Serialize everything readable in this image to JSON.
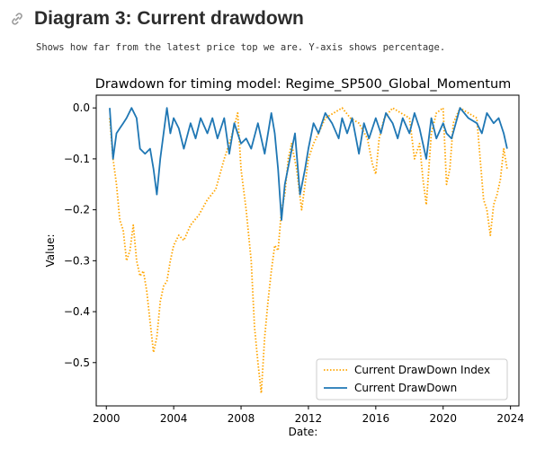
{
  "page": {
    "heading": "Diagram 3: Current drawdown",
    "description": "Shows how far from the latest price top we are. Y-axis shows percentage.",
    "link_icon": "link-icon"
  },
  "colors": {
    "index": "#ffa500",
    "drawdown": "#1f77b4"
  },
  "chart_data": {
    "type": "line",
    "title": "Drawdown for timing model: Regime_SP500_Global_Momentum",
    "xlabel": "Date:",
    "ylabel": "Value:",
    "xlim": [
      1999.4,
      2024.5
    ],
    "ylim": [
      -0.585,
      0.025
    ],
    "xticks": [
      2000,
      2004,
      2008,
      2012,
      2016,
      2020,
      2024
    ],
    "xtick_labels": [
      "2000",
      "2004",
      "2008",
      "2012",
      "2016",
      "2020",
      "2024"
    ],
    "yticks": [
      0.0,
      -0.1,
      -0.2,
      -0.3,
      -0.4,
      -0.5
    ],
    "ytick_labels": [
      "0.0",
      "−0.1",
      "−0.2",
      "−0.3",
      "−0.4",
      "−0.5"
    ],
    "legend_position": "bottom-right",
    "series": [
      {
        "name": "Current DrawDown Index",
        "style": "dotted",
        "x": [
          2000.2,
          2000.4,
          2000.6,
          2000.8,
          2001.0,
          2001.2,
          2001.4,
          2001.6,
          2001.8,
          2002.0,
          2002.2,
          2002.4,
          2002.6,
          2002.8,
          2003.0,
          2003.2,
          2003.4,
          2003.6,
          2003.8,
          2004.0,
          2004.3,
          2004.6,
          2005.0,
          2005.5,
          2006.0,
          2006.5,
          2007.0,
          2007.4,
          2007.8,
          2008.0,
          2008.3,
          2008.6,
          2008.8,
          2009.0,
          2009.2,
          2009.4,
          2009.6,
          2009.8,
          2010.0,
          2010.2,
          2010.4,
          2010.6,
          2010.8,
          2011.0,
          2011.3,
          2011.6,
          2011.8,
          2012.0,
          2012.3,
          2012.6,
          2013.0,
          2013.5,
          2014.0,
          2014.5,
          2015.0,
          2015.5,
          2015.8,
          2016.0,
          2016.2,
          2016.5,
          2017.0,
          2017.5,
          2018.0,
          2018.3,
          2018.6,
          2018.8,
          2019.0,
          2019.3,
          2019.6,
          2020.0,
          2020.2,
          2020.4,
          2020.6,
          2021.0,
          2021.5,
          2022.0,
          2022.2,
          2022.4,
          2022.6,
          2022.8,
          2023.0,
          2023.2,
          2023.4,
          2023.6,
          2023.8
        ],
        "y": [
          -0.02,
          -0.1,
          -0.15,
          -0.22,
          -0.24,
          -0.3,
          -0.28,
          -0.23,
          -0.3,
          -0.33,
          -0.32,
          -0.36,
          -0.42,
          -0.48,
          -0.45,
          -0.38,
          -0.35,
          -0.34,
          -0.3,
          -0.27,
          -0.25,
          -0.26,
          -0.23,
          -0.21,
          -0.18,
          -0.16,
          -0.1,
          -0.06,
          -0.01,
          -0.12,
          -0.2,
          -0.3,
          -0.43,
          -0.5,
          -0.56,
          -0.45,
          -0.38,
          -0.32,
          -0.27,
          -0.28,
          -0.2,
          -0.17,
          -0.1,
          -0.07,
          -0.12,
          -0.2,
          -0.15,
          -0.1,
          -0.07,
          -0.05,
          -0.02,
          -0.01,
          0.0,
          -0.02,
          -0.03,
          -0.06,
          -0.11,
          -0.13,
          -0.06,
          -0.02,
          0.0,
          -0.01,
          -0.02,
          -0.1,
          -0.07,
          -0.14,
          -0.19,
          -0.05,
          -0.01,
          0.0,
          -0.15,
          -0.12,
          -0.03,
          0.0,
          -0.01,
          -0.02,
          -0.1,
          -0.18,
          -0.2,
          -0.25,
          -0.19,
          -0.17,
          -0.14,
          -0.08,
          -0.12
        ]
      },
      {
        "name": "Current DrawDown",
        "style": "solid",
        "x": [
          2000.2,
          2000.4,
          2000.6,
          2000.8,
          2001.0,
          2001.2,
          2001.5,
          2001.8,
          2002.0,
          2002.3,
          2002.6,
          2002.8,
          2003.0,
          2003.2,
          2003.4,
          2003.6,
          2003.8,
          2004.0,
          2004.3,
          2004.6,
          2005.0,
          2005.3,
          2005.6,
          2006.0,
          2006.3,
          2006.6,
          2007.0,
          2007.3,
          2007.6,
          2008.0,
          2008.3,
          2008.6,
          2009.0,
          2009.4,
          2009.8,
          2010.0,
          2010.2,
          2010.4,
          2010.6,
          2010.9,
          2011.2,
          2011.5,
          2011.8,
          2012.0,
          2012.3,
          2012.6,
          2013.0,
          2013.4,
          2013.8,
          2014.0,
          2014.3,
          2014.6,
          2015.0,
          2015.3,
          2015.6,
          2016.0,
          2016.3,
          2016.6,
          2017.0,
          2017.3,
          2017.6,
          2018.0,
          2018.3,
          2018.6,
          2019.0,
          2019.3,
          2019.6,
          2020.0,
          2020.2,
          2020.5,
          2021.0,
          2021.5,
          2022.0,
          2022.3,
          2022.6,
          2023.0,
          2023.3,
          2023.6,
          2023.8
        ],
        "y": [
          0.0,
          -0.1,
          -0.05,
          -0.04,
          -0.03,
          -0.02,
          0.0,
          -0.02,
          -0.08,
          -0.09,
          -0.08,
          -0.12,
          -0.17,
          -0.1,
          -0.05,
          0.0,
          -0.05,
          -0.02,
          -0.04,
          -0.08,
          -0.03,
          -0.06,
          -0.02,
          -0.05,
          -0.02,
          -0.06,
          -0.02,
          -0.09,
          -0.03,
          -0.07,
          -0.06,
          -0.08,
          -0.03,
          -0.09,
          -0.01,
          -0.05,
          -0.12,
          -0.22,
          -0.15,
          -0.1,
          -0.05,
          -0.17,
          -0.12,
          -0.08,
          -0.03,
          -0.05,
          -0.01,
          -0.03,
          -0.06,
          -0.02,
          -0.05,
          -0.02,
          -0.09,
          -0.03,
          -0.06,
          -0.02,
          -0.05,
          -0.01,
          -0.03,
          -0.06,
          -0.02,
          -0.05,
          -0.01,
          -0.04,
          -0.1,
          -0.02,
          -0.06,
          -0.03,
          -0.05,
          -0.06,
          0.0,
          -0.02,
          -0.03,
          -0.05,
          -0.01,
          -0.03,
          -0.02,
          -0.05,
          -0.08
        ]
      }
    ]
  }
}
